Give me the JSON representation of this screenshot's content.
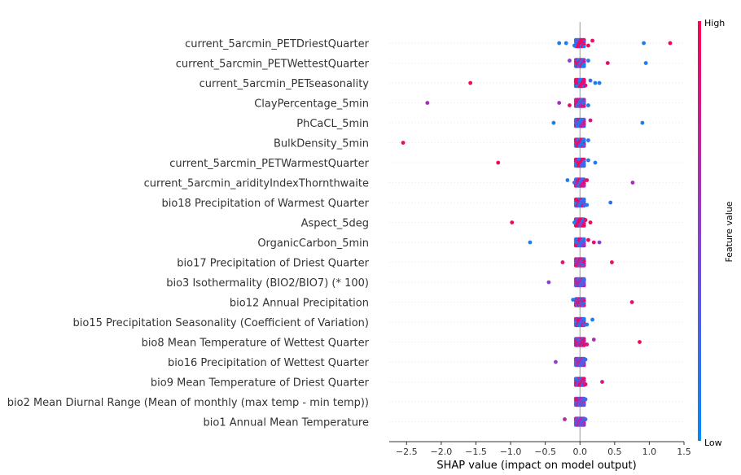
{
  "chart_data": {
    "type": "scatter",
    "subtype": "shap-beeswarm-summary",
    "title": "",
    "xlabel": "SHAP value (impact on model output)",
    "ylabel": "",
    "xlim": [
      -2.75,
      1.5
    ],
    "xticks": [
      -2.5,
      -2.0,
      -1.5,
      -1.0,
      -0.5,
      0.0,
      0.5,
      1.0,
      1.5
    ],
    "xtick_labels": [
      "−2.5",
      "−2.0",
      "−1.5",
      "−1.0",
      "−0.5",
      "0.0",
      "0.5",
      "1.0",
      "1.5"
    ],
    "grid": false,
    "colorbar": {
      "label": "Feature value",
      "high_label": "High",
      "low_label": "Low",
      "high_color": "#ff0052",
      "low_color": "#008bfb"
    },
    "features": [
      {
        "name": "current_5arcmin_PETDriestQuarter",
        "points": [
          {
            "x": -0.3,
            "c": 0.1
          },
          {
            "x": -0.2,
            "c": 0.1
          },
          {
            "x": -0.08,
            "c": 0.1
          },
          {
            "x": -0.05,
            "c": 0.3
          },
          {
            "x": 0.05,
            "c": 0.9
          },
          {
            "x": 0.12,
            "c": 0.95
          },
          {
            "x": 0.18,
            "c": 0.9
          },
          {
            "x": 0.92,
            "c": 0.1
          },
          {
            "x": 1.3,
            "c": 1.0
          }
        ]
      },
      {
        "name": "current_5arcmin_PETWettestQuarter",
        "points": [
          {
            "x": -0.15,
            "c": 0.5
          },
          {
            "x": -0.05,
            "c": 0.8
          },
          {
            "x": 0.05,
            "c": 0.1
          },
          {
            "x": 0.12,
            "c": 0.1
          },
          {
            "x": 0.4,
            "c": 0.9
          },
          {
            "x": 0.95,
            "c": 0.1
          }
        ]
      },
      {
        "name": "current_5arcmin_PETseasonality",
        "points": [
          {
            "x": -1.58,
            "c": 0.95
          },
          {
            "x": -0.05,
            "c": 0.9
          },
          {
            "x": 0.08,
            "c": 0.85
          },
          {
            "x": 0.15,
            "c": 0.2
          },
          {
            "x": 0.22,
            "c": 0.1
          },
          {
            "x": 0.28,
            "c": 0.1
          }
        ]
      },
      {
        "name": "ClayPercentage_5min",
        "points": [
          {
            "x": -2.2,
            "c": 0.6
          },
          {
            "x": -0.3,
            "c": 0.6
          },
          {
            "x": -0.15,
            "c": 0.9
          },
          {
            "x": -0.05,
            "c": 0.8
          },
          {
            "x": 0.05,
            "c": 0.2
          },
          {
            "x": 0.12,
            "c": 0.1
          }
        ]
      },
      {
        "name": "PhCaCL_5min",
        "points": [
          {
            "x": -0.38,
            "c": 0.1
          },
          {
            "x": -0.05,
            "c": 0.3
          },
          {
            "x": 0.05,
            "c": 0.7
          },
          {
            "x": 0.15,
            "c": 0.8
          },
          {
            "x": 0.9,
            "c": 0.1
          }
        ]
      },
      {
        "name": "BulkDensity_5min",
        "points": [
          {
            "x": -2.55,
            "c": 0.95
          },
          {
            "x": -0.05,
            "c": 0.8
          },
          {
            "x": 0.05,
            "c": 0.2
          },
          {
            "x": 0.12,
            "c": 0.1
          }
        ]
      },
      {
        "name": "current_5arcmin_PETWarmestQuarter",
        "points": [
          {
            "x": -1.18,
            "c": 0.95
          },
          {
            "x": -0.03,
            "c": 0.9
          },
          {
            "x": 0.05,
            "c": 0.3
          },
          {
            "x": 0.12,
            "c": 0.1
          },
          {
            "x": 0.22,
            "c": 0.1
          }
        ]
      },
      {
        "name": "current_5arcmin_aridityIndexThornthwaite",
        "points": [
          {
            "x": -0.18,
            "c": 0.1
          },
          {
            "x": -0.08,
            "c": 0.3
          },
          {
            "x": 0.03,
            "c": 0.8
          },
          {
            "x": 0.1,
            "c": 0.9
          },
          {
            "x": 0.76,
            "c": 0.6
          }
        ]
      },
      {
        "name": "bio18 Precipitation of Warmest Quarter",
        "points": [
          {
            "x": -0.05,
            "c": 0.9
          },
          {
            "x": 0.05,
            "c": 0.3
          },
          {
            "x": 0.1,
            "c": 0.1
          },
          {
            "x": 0.44,
            "c": 0.2
          }
        ]
      },
      {
        "name": "Aspect_5deg",
        "points": [
          {
            "x": -0.98,
            "c": 0.95
          },
          {
            "x": -0.08,
            "c": 0.1
          },
          {
            "x": 0.0,
            "c": 0.5
          },
          {
            "x": 0.08,
            "c": 0.9
          },
          {
            "x": 0.15,
            "c": 0.95
          }
        ]
      },
      {
        "name": "OrganicCarbon_5min",
        "points": [
          {
            "x": -0.72,
            "c": 0.1
          },
          {
            "x": -0.05,
            "c": 0.2
          },
          {
            "x": 0.05,
            "c": 0.5
          },
          {
            "x": 0.12,
            "c": 0.95
          },
          {
            "x": 0.2,
            "c": 0.9
          },
          {
            "x": 0.28,
            "c": 0.5
          }
        ]
      },
      {
        "name": "bio17 Precipitation of Driest Quarter",
        "points": [
          {
            "x": -0.25,
            "c": 0.85
          },
          {
            "x": -0.03,
            "c": 0.7
          },
          {
            "x": 0.03,
            "c": 0.3
          },
          {
            "x": 0.46,
            "c": 0.9
          }
        ]
      },
      {
        "name": "bio3 Isothermality (BIO2/BIO7) (* 100)",
        "points": [
          {
            "x": -0.45,
            "c": 0.5
          },
          {
            "x": -0.05,
            "c": 0.7
          },
          {
            "x": 0.03,
            "c": 0.3
          },
          {
            "x": 0.06,
            "c": 0.2
          }
        ]
      },
      {
        "name": "bio12 Annual Precipitation",
        "points": [
          {
            "x": -0.1,
            "c": 0.1
          },
          {
            "x": -0.03,
            "c": 0.8
          },
          {
            "x": 0.03,
            "c": 0.3
          },
          {
            "x": 0.75,
            "c": 0.9
          }
        ]
      },
      {
        "name": "bio15 Precipitation Seasonality (Coefficient of Variation)",
        "points": [
          {
            "x": -0.03,
            "c": 0.9
          },
          {
            "x": 0.03,
            "c": 0.4
          },
          {
            "x": 0.1,
            "c": 0.1
          },
          {
            "x": 0.18,
            "c": 0.1
          }
        ]
      },
      {
        "name": "bio8 Mean Temperature of Wettest Quarter",
        "points": [
          {
            "x": -0.03,
            "c": 0.3
          },
          {
            "x": 0.03,
            "c": 0.8
          },
          {
            "x": 0.1,
            "c": 0.8
          },
          {
            "x": 0.2,
            "c": 0.6
          },
          {
            "x": 0.86,
            "c": 0.95
          }
        ]
      },
      {
        "name": "bio16 Precipitation of Wettest Quarter",
        "points": [
          {
            "x": -0.35,
            "c": 0.5
          },
          {
            "x": -0.03,
            "c": 0.7
          },
          {
            "x": 0.03,
            "c": 0.3
          },
          {
            "x": 0.08,
            "c": 0.2
          }
        ]
      },
      {
        "name": "bio9 Mean Temperature of Driest Quarter",
        "points": [
          {
            "x": -0.05,
            "c": 0.2
          },
          {
            "x": 0.03,
            "c": 0.7
          },
          {
            "x": 0.08,
            "c": 0.9
          },
          {
            "x": 0.32,
            "c": 0.8
          }
        ]
      },
      {
        "name": "bio2 Mean Diurnal Range (Mean of monthly (max temp - min temp))",
        "points": [
          {
            "x": -0.05,
            "c": 0.8
          },
          {
            "x": 0.0,
            "c": 0.5
          },
          {
            "x": 0.05,
            "c": 0.3
          },
          {
            "x": 0.08,
            "c": 0.2
          }
        ]
      },
      {
        "name": "bio1 Annual Mean Temperature",
        "points": [
          {
            "x": -0.22,
            "c": 0.7
          },
          {
            "x": -0.03,
            "c": 0.6
          },
          {
            "x": 0.03,
            "c": 0.4
          },
          {
            "x": 0.08,
            "c": 0.2
          }
        ]
      }
    ]
  }
}
